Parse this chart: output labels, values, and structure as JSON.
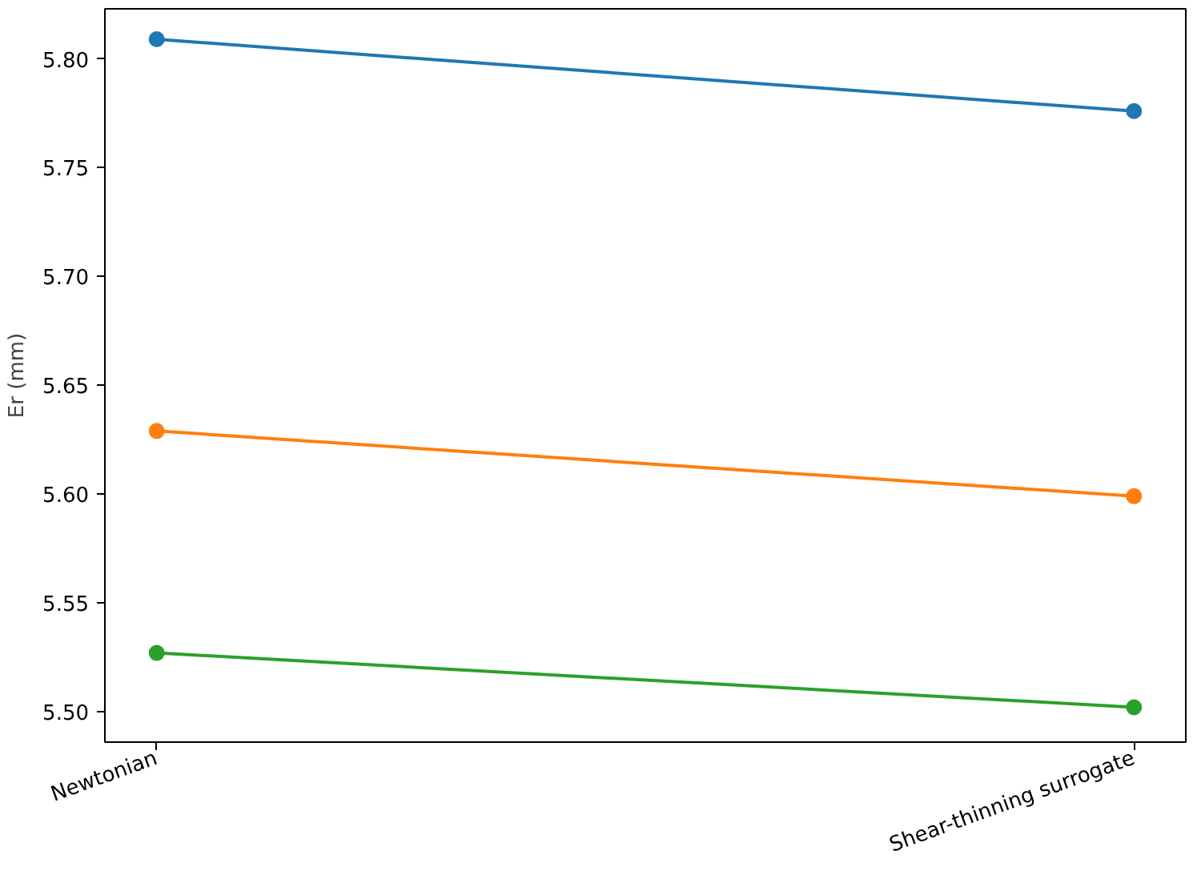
{
  "chart_data": {
    "type": "line",
    "ylabel": "Er (mm)",
    "categories": [
      "Newtonian",
      "Shear-thinning surrogate"
    ],
    "series": [
      {
        "color": "#1f77b4",
        "values": [
          5.809,
          5.776
        ]
      },
      {
        "color": "#ff7f0e",
        "values": [
          5.629,
          5.599
        ]
      },
      {
        "color": "#2ca02c",
        "values": [
          5.527,
          5.502
        ]
      }
    ],
    "ylim": [
      5.486,
      5.823
    ],
    "yticks": [
      {
        "value": 5.5,
        "label": "5.50"
      },
      {
        "value": 5.55,
        "label": "5.55"
      },
      {
        "value": 5.6,
        "label": "5.60"
      },
      {
        "value": 5.65,
        "label": "5.65"
      },
      {
        "value": 5.7,
        "label": "5.70"
      },
      {
        "value": 5.75,
        "label": "5.75"
      },
      {
        "value": 5.8,
        "label": "5.80"
      }
    ],
    "marker": "circle",
    "grid": false
  }
}
